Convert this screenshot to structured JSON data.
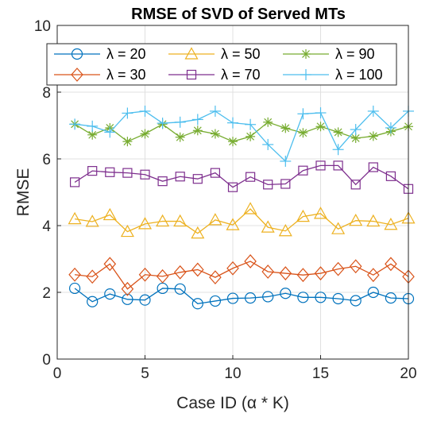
{
  "chart_data": {
    "type": "line",
    "title": "RMSE of SVD of Served MTs",
    "xlabel": "Case ID (α * K)",
    "ylabel": "RMSE",
    "xlim": [
      0,
      20
    ],
    "ylim": [
      0,
      10
    ],
    "xticks": [
      0,
      5,
      10,
      15,
      20
    ],
    "yticks": [
      0,
      2,
      4,
      6,
      8,
      10
    ],
    "grid": true,
    "legend_position": "top",
    "x": [
      1,
      2,
      3,
      4,
      5,
      6,
      7,
      8,
      9,
      10,
      11,
      12,
      13,
      14,
      15,
      16,
      17,
      18,
      19,
      20
    ],
    "series": [
      {
        "name": "λ = 20",
        "color": "#0072BD",
        "marker": "circle",
        "values": [
          2.12,
          1.72,
          1.95,
          1.79,
          1.77,
          2.12,
          2.1,
          1.66,
          1.74,
          1.82,
          1.83,
          1.87,
          1.97,
          1.85,
          1.85,
          1.81,
          1.75,
          2.0,
          1.83,
          1.81
        ]
      },
      {
        "name": "λ = 30",
        "color": "#D95319",
        "marker": "diamond",
        "values": [
          2.53,
          2.47,
          2.85,
          2.1,
          2.53,
          2.48,
          2.6,
          2.68,
          2.45,
          2.72,
          2.93,
          2.62,
          2.57,
          2.52,
          2.57,
          2.7,
          2.78,
          2.52,
          2.85,
          2.47
        ]
      },
      {
        "name": "λ = 50",
        "color": "#EDB120",
        "marker": "triangle",
        "values": [
          4.2,
          4.12,
          4.32,
          3.82,
          4.05,
          4.13,
          4.13,
          3.77,
          4.17,
          4.02,
          4.5,
          3.95,
          3.84,
          4.27,
          4.36,
          3.9,
          4.15,
          4.13,
          4.03,
          4.22
        ]
      },
      {
        "name": "λ = 70",
        "color": "#7E2F8E",
        "marker": "square",
        "values": [
          5.3,
          5.64,
          5.6,
          5.58,
          5.53,
          5.33,
          5.47,
          5.4,
          5.58,
          5.15,
          5.46,
          5.23,
          5.25,
          5.65,
          5.8,
          5.8,
          5.23,
          5.75,
          5.48,
          5.1
        ]
      },
      {
        "name": "λ = 90",
        "color": "#77AC30",
        "marker": "asterisk",
        "values": [
          7.04,
          6.72,
          6.93,
          6.52,
          6.75,
          7.04,
          6.65,
          6.85,
          6.75,
          6.52,
          6.67,
          7.1,
          6.92,
          6.78,
          6.97,
          6.8,
          6.62,
          6.68,
          6.82,
          6.97
        ]
      },
      {
        "name": "λ = 100",
        "color": "#4DBEEE",
        "marker": "plus",
        "values": [
          7.04,
          6.98,
          6.8,
          7.37,
          7.43,
          7.07,
          7.1,
          7.18,
          7.43,
          7.08,
          7.03,
          6.43,
          5.93,
          7.35,
          7.38,
          6.28,
          6.88,
          7.43,
          6.93,
          7.43
        ]
      }
    ]
  }
}
